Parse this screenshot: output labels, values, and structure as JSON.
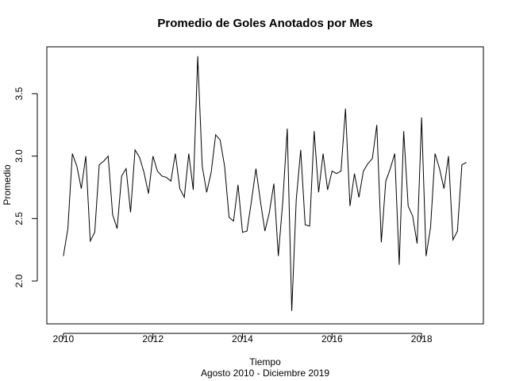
{
  "chart_data": {
    "type": "line",
    "title": "Promedio de Goles Anotados por Mes",
    "x_label": "Tiempo",
    "subtitle": "Agosto 2010 - Diciembre 2019",
    "y_label": "Promedio",
    "color": "#000000",
    "x": [
      2010.0,
      2010.1,
      2010.2,
      2010.3,
      2010.4,
      2010.5,
      2010.6,
      2010.7,
      2010.8,
      2010.9,
      2011.0,
      2011.1,
      2011.2,
      2011.3,
      2011.4,
      2011.5,
      2011.6,
      2011.7,
      2011.8,
      2011.9,
      2012.0,
      2012.1,
      2012.2,
      2012.3,
      2012.4,
      2012.5,
      2012.6,
      2012.7,
      2012.8,
      2012.9,
      2013.0,
      2013.1,
      2013.2,
      2013.3,
      2013.4,
      2013.5,
      2013.6,
      2013.7,
      2013.8,
      2013.9,
      2014.0,
      2014.1,
      2014.2,
      2014.3,
      2014.4,
      2014.5,
      2014.6,
      2014.7,
      2014.8,
      2014.9,
      2015.0,
      2015.1,
      2015.2,
      2015.3,
      2015.4,
      2015.5,
      2015.6,
      2015.7,
      2015.8,
      2015.9,
      2016.0,
      2016.1,
      2016.2,
      2016.3,
      2016.4,
      2016.5,
      2016.6,
      2016.7,
      2016.8,
      2016.9,
      2017.0,
      2017.1,
      2017.2,
      2017.3,
      2017.4,
      2017.5,
      2017.6,
      2017.7,
      2017.8,
      2017.9,
      2018.0,
      2018.1,
      2018.2,
      2018.3,
      2018.4,
      2018.5,
      2018.6,
      2018.7,
      2018.8,
      2018.9,
      2019.0
    ],
    "values": [
      2.2,
      2.42,
      3.02,
      2.92,
      2.74,
      3.0,
      2.32,
      2.39,
      2.93,
      2.96,
      3.0,
      2.53,
      2.42,
      2.84,
      2.9,
      2.55,
      3.05,
      2.99,
      2.87,
      2.7,
      3.0,
      2.88,
      2.84,
      2.83,
      2.8,
      3.02,
      2.74,
      2.67,
      3.02,
      2.73,
      3.8,
      2.92,
      2.71,
      2.87,
      3.17,
      3.13,
      2.92,
      2.51,
      2.48,
      2.77,
      2.39,
      2.4,
      2.64,
      2.9,
      2.64,
      2.4,
      2.55,
      2.78,
      2.2,
      2.64,
      3.22,
      1.76,
      2.65,
      3.05,
      2.45,
      2.44,
      3.2,
      2.71,
      3.02,
      2.73,
      2.88,
      2.86,
      2.88,
      3.38,
      2.6,
      2.86,
      2.67,
      2.88,
      2.94,
      2.98,
      3.25,
      2.31,
      2.8,
      2.9,
      3.02,
      2.13,
      3.2,
      2.6,
      2.52,
      2.3,
      3.31,
      2.2,
      2.43,
      3.02,
      2.9,
      2.74,
      3.0,
      2.33,
      2.4,
      2.93,
      2.95
    ],
    "xlim": [
      2009.63,
      2019.38
    ],
    "xticks": [
      2010,
      2012,
      2014,
      2016,
      2018
    ],
    "ylim": [
      1.657,
      3.875
    ],
    "yticks": [
      {
        "value": 2.0,
        "label": "2.0"
      },
      2.5,
      {
        "value": 3.0,
        "label": "3.0"
      },
      3.5
    ]
  }
}
